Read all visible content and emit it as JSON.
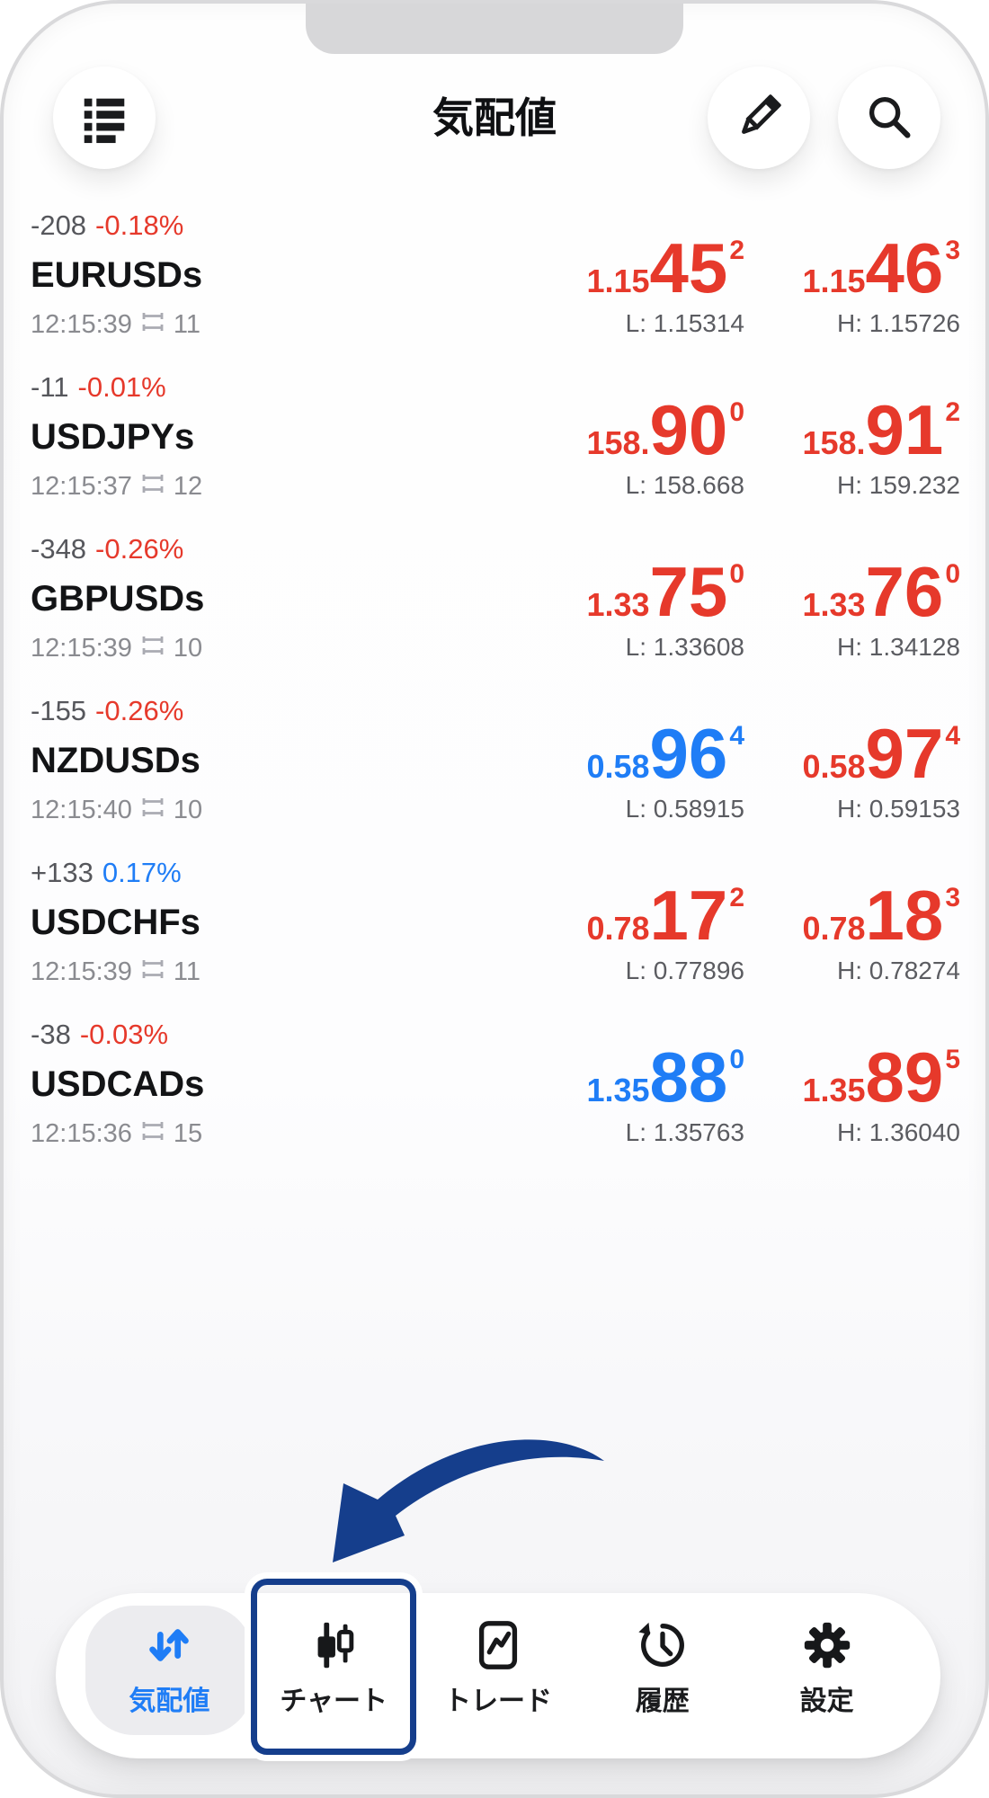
{
  "colors": {
    "red": "#E6392B",
    "blue": "#1F7DF6",
    "navy": "#153E8C",
    "gray": "#56575C",
    "light_gray": "#8A8B90",
    "lh_gray": "#5B5C61",
    "tab_active_bg": "#ECECEF",
    "notch": "#D7D7D9"
  },
  "header": {
    "title": "気配値",
    "menu_icon": "list-icon",
    "edit_icon": "pencil-icon",
    "search_icon": "search-icon"
  },
  "quotes": [
    {
      "symbol": "EURUSDs",
      "change": "-208",
      "percent": "-0.18%",
      "trend": "down",
      "time": "12:15:39",
      "spread": "11",
      "bid": {
        "prefix": "1.15",
        "big": "45",
        "sup": "2",
        "dir": "down"
      },
      "ask": {
        "prefix": "1.15",
        "big": "46",
        "sup": "3",
        "dir": "down"
      },
      "low": "L: 1.15314",
      "high": "H: 1.15726"
    },
    {
      "symbol": "USDJPYs",
      "change": "-11",
      "percent": "-0.01%",
      "trend": "down",
      "time": "12:15:37",
      "spread": "12",
      "bid": {
        "prefix": "158.",
        "big": "90",
        "sup": "0",
        "dir": "down"
      },
      "ask": {
        "prefix": "158.",
        "big": "91",
        "sup": "2",
        "dir": "down"
      },
      "low": "L: 158.668",
      "high": "H: 159.232"
    },
    {
      "symbol": "GBPUSDs",
      "change": "-348",
      "percent": "-0.26%",
      "trend": "down",
      "time": "12:15:39",
      "spread": "10",
      "bid": {
        "prefix": "1.33",
        "big": "75",
        "sup": "0",
        "dir": "down"
      },
      "ask": {
        "prefix": "1.33",
        "big": "76",
        "sup": "0",
        "dir": "down"
      },
      "low": "L: 1.33608",
      "high": "H: 1.34128"
    },
    {
      "symbol": "NZDUSDs",
      "change": "-155",
      "percent": "-0.26%",
      "trend": "down",
      "time": "12:15:40",
      "spread": "10",
      "bid": {
        "prefix": "0.58",
        "big": "96",
        "sup": "4",
        "dir": "up"
      },
      "ask": {
        "prefix": "0.58",
        "big": "97",
        "sup": "4",
        "dir": "down"
      },
      "low": "L: 0.58915",
      "high": "H: 0.59153"
    },
    {
      "symbol": "USDCHFs",
      "change": "+133",
      "percent": "0.17%",
      "trend": "up",
      "time": "12:15:39",
      "spread": "11",
      "bid": {
        "prefix": "0.78",
        "big": "17",
        "sup": "2",
        "dir": "down"
      },
      "ask": {
        "prefix": "0.78",
        "big": "18",
        "sup": "3",
        "dir": "down"
      },
      "low": "L: 0.77896",
      "high": "H: 0.78274"
    },
    {
      "symbol": "USDCADs",
      "change": "-38",
      "percent": "-0.03%",
      "trend": "down",
      "time": "12:15:36",
      "spread": "15",
      "bid": {
        "prefix": "1.35",
        "big": "88",
        "sup": "0",
        "dir": "up"
      },
      "ask": {
        "prefix": "1.35",
        "big": "89",
        "sup": "5",
        "dir": "down"
      },
      "low": "L: 1.35763",
      "high": "H: 1.36040"
    }
  ],
  "tabbar": [
    {
      "key": "quotes",
      "label": "気配値",
      "icon": "updown-arrows-icon",
      "active": true
    },
    {
      "key": "chart",
      "label": "チャート",
      "icon": "candlestick-icon",
      "highlighted": true
    },
    {
      "key": "trade",
      "label": "トレード",
      "icon": "chart-line-box-icon"
    },
    {
      "key": "history",
      "label": "履歴",
      "icon": "history-clock-icon"
    },
    {
      "key": "settings",
      "label": "設定",
      "icon": "gear-icon"
    }
  ],
  "annotation": {
    "arrow": "curved-arrow-pointing-to-chart-tab"
  }
}
